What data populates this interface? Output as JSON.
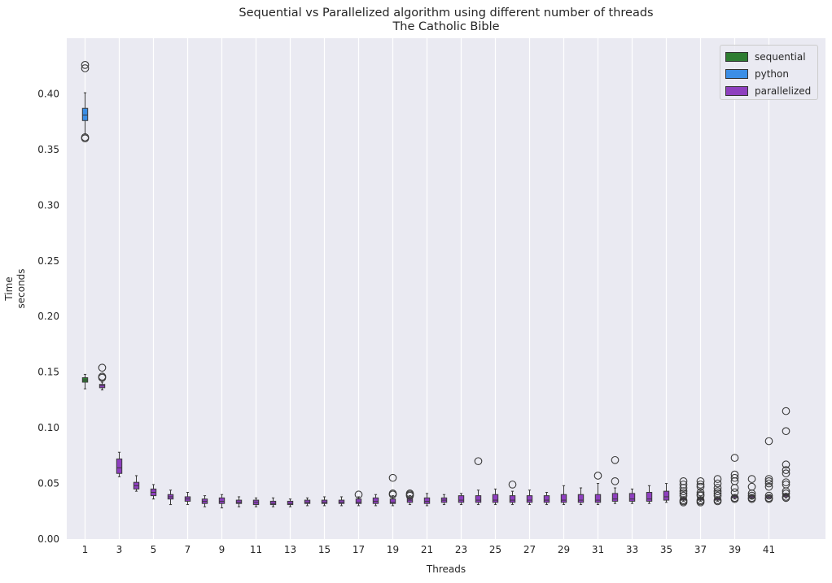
{
  "chart_data": {
    "type": "box",
    "title": "Sequential vs Parallelized algorithm using different number of threads",
    "subtitle": "The Catholic Bible",
    "xlabel": "Threads",
    "ylabel_lines": [
      "Time",
      "seconds"
    ],
    "ylim": [
      0,
      0.45
    ],
    "yticks": [
      "0.00",
      "0.05",
      "0.10",
      "0.15",
      "0.20",
      "0.25",
      "0.30",
      "0.35",
      "0.40"
    ],
    "xtick_labels": [
      "1",
      "3",
      "5",
      "7",
      "9",
      "11",
      "13",
      "15",
      "17",
      "19",
      "21",
      "23",
      "25",
      "27",
      "29",
      "31",
      "33",
      "35",
      "37",
      "39",
      "41"
    ],
    "grid": "vertical",
    "legend_position": "top-right",
    "legend": [
      {
        "name": "sequential",
        "color": "#2e7d32"
      },
      {
        "name": "python",
        "color": "#3b8ee6"
      },
      {
        "name": "parallelized",
        "color": "#8e3fbf"
      }
    ],
    "boxes": [
      {
        "series": "sequential",
        "thread": 1,
        "whislo": 0.135,
        "q1": 0.141,
        "med": 0.143,
        "q3": 0.145,
        "whishi": 0.148,
        "fliers": []
      },
      {
        "series": "python",
        "thread": 1,
        "whislo": 0.364,
        "q1": 0.376,
        "med": 0.381,
        "q3": 0.387,
        "whishi": 0.401,
        "fliers": [
          0.426,
          0.423,
          0.361,
          0.36
        ]
      },
      {
        "series": "parallelized",
        "thread": 2,
        "whislo": 0.134,
        "q1": 0.136,
        "med": 0.138,
        "q3": 0.139,
        "whishi": 0.141,
        "fliers": [
          0.154,
          0.146,
          0.145
        ]
      },
      {
        "series": "parallelized",
        "thread": 3,
        "whislo": 0.056,
        "q1": 0.059,
        "med": 0.064,
        "q3": 0.072,
        "whishi": 0.078,
        "fliers": []
      },
      {
        "series": "parallelized",
        "thread": 4,
        "whislo": 0.043,
        "q1": 0.045,
        "med": 0.048,
        "q3": 0.051,
        "whishi": 0.057,
        "fliers": []
      },
      {
        "series": "parallelized",
        "thread": 5,
        "whislo": 0.036,
        "q1": 0.039,
        "med": 0.042,
        "q3": 0.045,
        "whishi": 0.049,
        "fliers": []
      },
      {
        "series": "parallelized",
        "thread": 6,
        "whislo": 0.031,
        "q1": 0.036,
        "med": 0.038,
        "q3": 0.04,
        "whishi": 0.044,
        "fliers": []
      },
      {
        "series": "parallelized",
        "thread": 7,
        "whislo": 0.031,
        "q1": 0.034,
        "med": 0.036,
        "q3": 0.038,
        "whishi": 0.042,
        "fliers": []
      },
      {
        "series": "parallelized",
        "thread": 8,
        "whislo": 0.029,
        "q1": 0.032,
        "med": 0.034,
        "q3": 0.036,
        "whishi": 0.039,
        "fliers": []
      },
      {
        "series": "parallelized",
        "thread": 9,
        "whislo": 0.028,
        "q1": 0.032,
        "med": 0.034,
        "q3": 0.037,
        "whishi": 0.04,
        "fliers": []
      },
      {
        "series": "parallelized",
        "thread": 10,
        "whislo": 0.029,
        "q1": 0.032,
        "med": 0.033,
        "q3": 0.035,
        "whishi": 0.038,
        "fliers": []
      },
      {
        "series": "parallelized",
        "thread": 11,
        "whislo": 0.029,
        "q1": 0.031,
        "med": 0.033,
        "q3": 0.035,
        "whishi": 0.037,
        "fliers": []
      },
      {
        "series": "parallelized",
        "thread": 12,
        "whislo": 0.029,
        "q1": 0.031,
        "med": 0.032,
        "q3": 0.034,
        "whishi": 0.037,
        "fliers": []
      },
      {
        "series": "parallelized",
        "thread": 13,
        "whislo": 0.029,
        "q1": 0.031,
        "med": 0.032,
        "q3": 0.034,
        "whishi": 0.036,
        "fliers": []
      },
      {
        "series": "parallelized",
        "thread": 14,
        "whislo": 0.03,
        "q1": 0.032,
        "med": 0.033,
        "q3": 0.035,
        "whishi": 0.037,
        "fliers": []
      },
      {
        "series": "parallelized",
        "thread": 15,
        "whislo": 0.03,
        "q1": 0.032,
        "med": 0.033,
        "q3": 0.035,
        "whishi": 0.038,
        "fliers": []
      },
      {
        "series": "parallelized",
        "thread": 16,
        "whislo": 0.03,
        "q1": 0.032,
        "med": 0.033,
        "q3": 0.035,
        "whishi": 0.038,
        "fliers": []
      },
      {
        "series": "parallelized",
        "thread": 17,
        "whislo": 0.03,
        "q1": 0.032,
        "med": 0.033,
        "q3": 0.036,
        "whishi": 0.038,
        "fliers": [
          0.04
        ]
      },
      {
        "series": "parallelized",
        "thread": 18,
        "whislo": 0.03,
        "q1": 0.032,
        "med": 0.034,
        "q3": 0.037,
        "whishi": 0.04,
        "fliers": []
      },
      {
        "series": "parallelized",
        "thread": 19,
        "whislo": 0.03,
        "q1": 0.032,
        "med": 0.033,
        "q3": 0.036,
        "whishi": 0.039,
        "fliers": [
          0.055,
          0.041,
          0.04
        ]
      },
      {
        "series": "parallelized",
        "thread": 20,
        "whislo": 0.031,
        "q1": 0.033,
        "med": 0.035,
        "q3": 0.037,
        "whishi": 0.039,
        "fliers": [
          0.041,
          0.04,
          0.039
        ]
      },
      {
        "series": "parallelized",
        "thread": 21,
        "whislo": 0.03,
        "q1": 0.032,
        "med": 0.034,
        "q3": 0.037,
        "whishi": 0.041,
        "fliers": []
      },
      {
        "series": "parallelized",
        "thread": 22,
        "whislo": 0.031,
        "q1": 0.033,
        "med": 0.035,
        "q3": 0.037,
        "whishi": 0.04,
        "fliers": []
      },
      {
        "series": "parallelized",
        "thread": 23,
        "whislo": 0.031,
        "q1": 0.033,
        "med": 0.035,
        "q3": 0.039,
        "whishi": 0.041,
        "fliers": []
      },
      {
        "series": "parallelized",
        "thread": 24,
        "whislo": 0.031,
        "q1": 0.033,
        "med": 0.035,
        "q3": 0.039,
        "whishi": 0.044,
        "fliers": [
          0.07
        ]
      },
      {
        "series": "parallelized",
        "thread": 25,
        "whislo": 0.031,
        "q1": 0.033,
        "med": 0.035,
        "q3": 0.04,
        "whishi": 0.045,
        "fliers": []
      },
      {
        "series": "parallelized",
        "thread": 26,
        "whislo": 0.031,
        "q1": 0.033,
        "med": 0.035,
        "q3": 0.039,
        "whishi": 0.043,
        "fliers": [
          0.049
        ]
      },
      {
        "series": "parallelized",
        "thread": 27,
        "whislo": 0.031,
        "q1": 0.033,
        "med": 0.035,
        "q3": 0.039,
        "whishi": 0.044,
        "fliers": []
      },
      {
        "series": "parallelized",
        "thread": 28,
        "whislo": 0.031,
        "q1": 0.033,
        "med": 0.035,
        "q3": 0.039,
        "whishi": 0.042,
        "fliers": []
      },
      {
        "series": "parallelized",
        "thread": 29,
        "whislo": 0.031,
        "q1": 0.033,
        "med": 0.035,
        "q3": 0.04,
        "whishi": 0.048,
        "fliers": []
      },
      {
        "series": "parallelized",
        "thread": 30,
        "whislo": 0.031,
        "q1": 0.033,
        "med": 0.035,
        "q3": 0.04,
        "whishi": 0.046,
        "fliers": []
      },
      {
        "series": "parallelized",
        "thread": 31,
        "whislo": 0.031,
        "q1": 0.033,
        "med": 0.035,
        "q3": 0.04,
        "whishi": 0.05,
        "fliers": [
          0.057
        ]
      },
      {
        "series": "parallelized",
        "thread": 32,
        "whislo": 0.032,
        "q1": 0.034,
        "med": 0.036,
        "q3": 0.041,
        "whishi": 0.046,
        "fliers": [
          0.071,
          0.052
        ]
      },
      {
        "series": "parallelized",
        "thread": 33,
        "whislo": 0.032,
        "q1": 0.034,
        "med": 0.036,
        "q3": 0.041,
        "whishi": 0.045,
        "fliers": []
      },
      {
        "series": "parallelized",
        "thread": 34,
        "whislo": 0.032,
        "q1": 0.034,
        "med": 0.036,
        "q3": 0.042,
        "whishi": 0.048,
        "fliers": []
      },
      {
        "series": "parallelized",
        "thread": 35,
        "whislo": 0.033,
        "q1": 0.035,
        "med": 0.038,
        "q3": 0.043,
        "whishi": 0.05,
        "fliers": []
      },
      {
        "series": "parallelized",
        "thread": 36,
        "whislo": 0.034,
        "q1": 0.035,
        "med": 0.036,
        "q3": 0.037,
        "whishi": 0.038,
        "fliers": [
          0.052,
          0.049,
          0.046,
          0.043,
          0.041,
          0.039,
          0.035,
          0.034,
          0.033
        ]
      },
      {
        "series": "parallelized",
        "thread": 37,
        "whislo": 0.034,
        "q1": 0.035,
        "med": 0.036,
        "q3": 0.037,
        "whishi": 0.038,
        "fliers": [
          0.052,
          0.049,
          0.047,
          0.042,
          0.04,
          0.039,
          0.035,
          0.034,
          0.033
        ]
      },
      {
        "series": "parallelized",
        "thread": 38,
        "whislo": 0.034,
        "q1": 0.035,
        "med": 0.036,
        "q3": 0.037,
        "whishi": 0.038,
        "fliers": [
          0.054,
          0.05,
          0.046,
          0.043,
          0.041,
          0.039,
          0.035,
          0.034
        ]
      },
      {
        "series": "parallelized",
        "thread": 39,
        "whislo": 0.036,
        "q1": 0.037,
        "med": 0.038,
        "q3": 0.039,
        "whishi": 0.04,
        "fliers": [
          0.073,
          0.058,
          0.055,
          0.052,
          0.046,
          0.042,
          0.037,
          0.036
        ]
      },
      {
        "series": "parallelized",
        "thread": 40,
        "whislo": 0.036,
        "q1": 0.037,
        "med": 0.038,
        "q3": 0.039,
        "whishi": 0.04,
        "fliers": [
          0.054,
          0.047,
          0.041,
          0.039,
          0.037,
          0.036
        ]
      },
      {
        "series": "parallelized",
        "thread": 41,
        "whislo": 0.037,
        "q1": 0.037,
        "med": 0.038,
        "q3": 0.038,
        "whishi": 0.039,
        "fliers": [
          0.088,
          0.054,
          0.052,
          0.05,
          0.047,
          0.039,
          0.037,
          0.036
        ]
      },
      {
        "series": "parallelized",
        "thread": 42,
        "whislo": 0.037,
        "q1": 0.038,
        "med": 0.039,
        "q3": 0.04,
        "whishi": 0.041,
        "fliers": [
          0.115,
          0.097,
          0.067,
          0.062,
          0.059,
          0.051,
          0.049,
          0.043,
          0.041,
          0.038,
          0.037
        ]
      }
    ]
  }
}
